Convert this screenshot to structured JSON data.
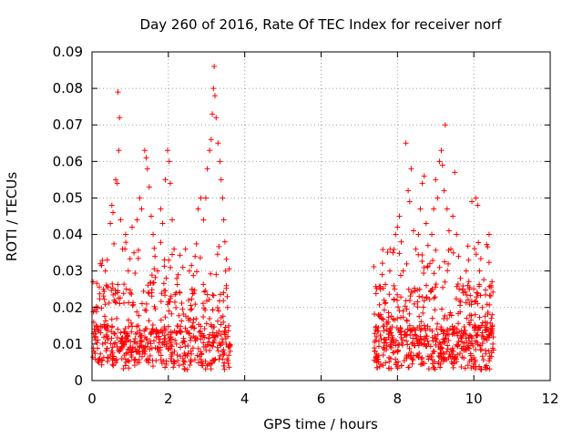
{
  "chart_data": {
    "type": "scatter",
    "title": "Day 260 of 2016, Rate Of TEC Index for receiver norf",
    "xlabel": "GPS time / hours",
    "ylabel": "ROTI / TECUs",
    "xlim": [
      0,
      12
    ],
    "ylim": [
      0,
      0.09
    ],
    "grid": true,
    "marker": "+",
    "color": "#ff0000",
    "xticks": [
      "0",
      "2",
      "4",
      "6",
      "8",
      "10",
      "12"
    ],
    "yticks": [
      "0",
      "0.01",
      "0.02",
      "0.03",
      "0.04",
      "0.05",
      "0.06",
      "0.07",
      "0.08",
      "0.09"
    ],
    "series": [
      {
        "name": "ROTI",
        "points": [
          [
            0.68,
            0.079
          ],
          [
            0.72,
            0.072
          ],
          [
            0.7,
            0.063
          ],
          [
            0.62,
            0.055
          ],
          [
            0.66,
            0.054
          ],
          [
            0.55,
            0.046
          ],
          [
            0.48,
            0.043
          ],
          [
            0.52,
            0.048
          ],
          [
            0.75,
            0.044
          ],
          [
            0.4,
            0.033
          ],
          [
            0.35,
            0.03
          ],
          [
            0.3,
            0.025
          ],
          [
            0.22,
            0.032
          ],
          [
            0.15,
            0.02
          ],
          [
            0.1,
            0.012
          ],
          [
            0.05,
            0.008
          ],
          [
            0.2,
            0.006
          ],
          [
            0.28,
            0.01
          ],
          [
            0.42,
            0.015
          ],
          [
            0.58,
            0.022
          ],
          [
            0.8,
            0.036
          ],
          [
            0.88,
            0.04
          ],
          [
            0.95,
            0.03
          ],
          [
            1.0,
            0.024
          ],
          [
            1.05,
            0.042
          ],
          [
            1.1,
            0.035
          ],
          [
            1.18,
            0.044
          ],
          [
            1.25,
            0.05
          ],
          [
            1.3,
            0.047
          ],
          [
            1.38,
            0.063
          ],
          [
            1.42,
            0.061
          ],
          [
            1.45,
            0.058
          ],
          [
            1.5,
            0.053
          ],
          [
            1.55,
            0.045
          ],
          [
            1.6,
            0.04
          ],
          [
            1.65,
            0.034
          ],
          [
            1.72,
            0.03
          ],
          [
            1.8,
            0.047
          ],
          [
            1.85,
            0.043
          ],
          [
            1.92,
            0.055
          ],
          [
            1.98,
            0.063
          ],
          [
            2.02,
            0.06
          ],
          [
            2.05,
            0.054
          ],
          [
            2.1,
            0.044
          ],
          [
            2.15,
            0.036
          ],
          [
            2.22,
            0.028
          ],
          [
            2.3,
            0.024
          ],
          [
            2.38,
            0.031
          ],
          [
            2.45,
            0.036
          ],
          [
            2.55,
            0.03
          ],
          [
            2.62,
            0.025
          ],
          [
            2.7,
            0.034
          ],
          [
            2.78,
            0.047
          ],
          [
            2.85,
            0.05
          ],
          [
            2.92,
            0.044
          ],
          [
            2.98,
            0.05
          ],
          [
            3.02,
            0.058
          ],
          [
            3.08,
            0.063
          ],
          [
            3.12,
            0.066
          ],
          [
            3.15,
            0.073
          ],
          [
            3.18,
            0.08
          ],
          [
            3.2,
            0.086
          ],
          [
            3.22,
            0.078
          ],
          [
            3.25,
            0.072
          ],
          [
            3.3,
            0.065
          ],
          [
            3.35,
            0.06
          ],
          [
            3.38,
            0.055
          ],
          [
            3.42,
            0.05
          ],
          [
            3.45,
            0.044
          ],
          [
            3.48,
            0.038
          ],
          [
            3.5,
            0.03
          ],
          [
            3.52,
            0.026
          ],
          [
            3.55,
            0.02
          ],
          [
            3.58,
            0.015
          ],
          [
            3.6,
            0.01
          ],
          [
            3.62,
            0.008
          ],
          [
            7.4,
            0.008
          ],
          [
            7.45,
            0.012
          ],
          [
            7.5,
            0.018
          ],
          [
            7.55,
            0.025
          ],
          [
            7.6,
            0.029
          ],
          [
            7.65,
            0.022
          ],
          [
            7.72,
            0.016
          ],
          [
            7.8,
            0.03
          ],
          [
            7.88,
            0.035
          ],
          [
            7.95,
            0.04
          ],
          [
            8.0,
            0.042
          ],
          [
            8.05,
            0.045
          ],
          [
            8.1,
            0.038
          ],
          [
            8.15,
            0.03
          ],
          [
            8.22,
            0.065
          ],
          [
            8.28,
            0.052
          ],
          [
            8.32,
            0.049
          ],
          [
            8.36,
            0.058
          ],
          [
            8.42,
            0.041
          ],
          [
            8.48,
            0.036
          ],
          [
            8.55,
            0.04
          ],
          [
            8.6,
            0.047
          ],
          [
            8.65,
            0.054
          ],
          [
            8.7,
            0.056
          ],
          [
            8.75,
            0.043
          ],
          [
            8.8,
            0.037
          ],
          [
            8.85,
            0.032
          ],
          [
            8.9,
            0.04
          ],
          [
            8.95,
            0.047
          ],
          [
            9.0,
            0.055
          ],
          [
            9.05,
            0.05
          ],
          [
            9.1,
            0.06
          ],
          [
            9.15,
            0.063
          ],
          [
            9.18,
            0.059
          ],
          [
            9.22,
            0.052
          ],
          [
            9.25,
            0.07
          ],
          [
            9.3,
            0.047
          ],
          [
            9.35,
            0.041
          ],
          [
            9.4,
            0.036
          ],
          [
            9.45,
            0.045
          ],
          [
            9.5,
            0.057
          ],
          [
            9.55,
            0.04
          ],
          [
            9.6,
            0.034
          ],
          [
            9.65,
            0.028
          ],
          [
            9.72,
            0.024
          ],
          [
            9.8,
            0.03
          ],
          [
            9.88,
            0.025
          ],
          [
            9.95,
            0.049
          ],
          [
            10.05,
            0.05
          ],
          [
            10.1,
            0.048
          ],
          [
            10.15,
            0.03
          ],
          [
            10.22,
            0.02
          ],
          [
            10.3,
            0.016
          ],
          [
            10.35,
            0.012
          ],
          [
            10.4,
            0.04
          ],
          [
            10.45,
            0.026
          ],
          [
            10.48,
            0.018
          ],
          [
            10.5,
            0.01
          ],
          [
            10.42,
            0.006
          ],
          [
            10.2,
            0.003
          ]
        ]
      }
    ]
  }
}
